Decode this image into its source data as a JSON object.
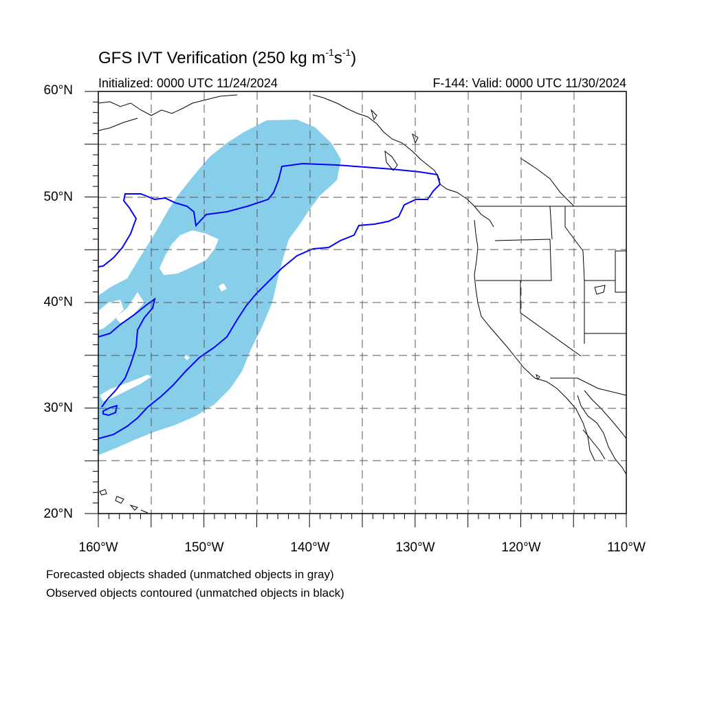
{
  "header": {
    "title": "GFS IVT Verification (250 kg m",
    "title_sup1": "-1",
    "title_mid": "s",
    "title_sup2": "-1",
    "title_end": ")",
    "initialized": "Initialized: 0000 UTC 11/24/2024",
    "valid": "F-144: Valid: 0000 UTC 11/30/2024"
  },
  "axes": {
    "y_labels": [
      "60°N",
      "50°N",
      "40°N",
      "30°N",
      "20°N"
    ],
    "x_labels": [
      "160°W",
      "150°W",
      "140°W",
      "130°W",
      "120°W",
      "110°W"
    ],
    "lat_range": [
      20,
      60
    ],
    "lon_range": [
      -160,
      -110
    ]
  },
  "legend": {
    "line1": "Forecasted objects shaded (unmatched objects in gray)",
    "line2": "Observed objects contoured (unmatched objects in black)"
  },
  "colors": {
    "forecast_fill": "#87ceeb",
    "observed_contour": "#0000ff",
    "coastline": "#000000",
    "grid": "#555555"
  }
}
